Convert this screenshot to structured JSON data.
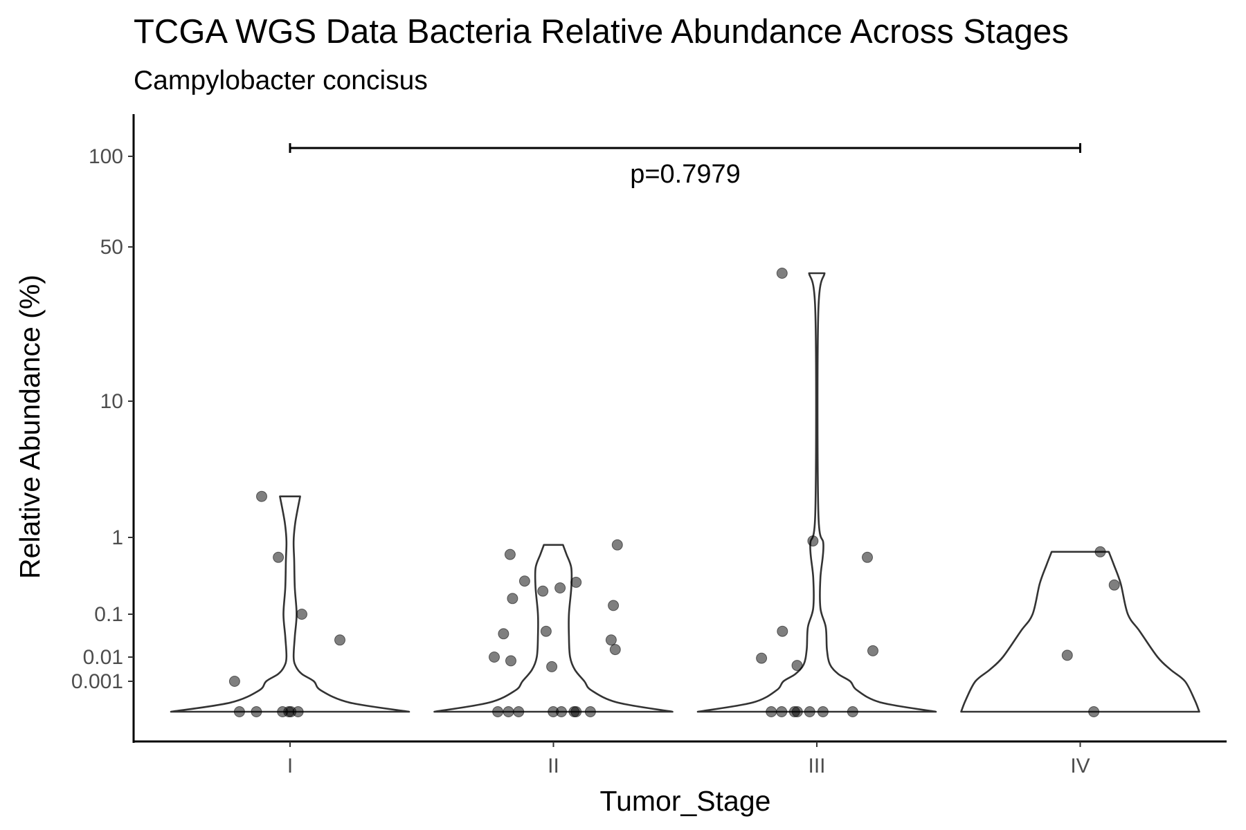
{
  "chart_data": {
    "type": "violin",
    "title": "TCGA WGS Data Bacteria Relative Abundance Across Stages",
    "subtitle": "Campylobacter concisus",
    "xlabel": "Tumor_Stage",
    "ylabel": "Relative Abundance (%)",
    "categories": [
      "I",
      "II",
      "III",
      "IV"
    ],
    "y_ticks": [
      0.001,
      0.01,
      0.1,
      1,
      10,
      50,
      100
    ],
    "y_tick_labels": [
      "0.001",
      "0.01",
      "0.1",
      "1",
      "10",
      "50",
      "100"
    ],
    "y_scale": "pseudo-log",
    "grid": false,
    "annotation": {
      "text": "p=0.7979",
      "from_category": "I",
      "to_category": "IV"
    },
    "points": [
      {
        "category": "I",
        "values": [
          0,
          0,
          0,
          0,
          0,
          0,
          0.001,
          0.025,
          0.1,
          0.55,
          2.0
        ]
      },
      {
        "category": "II",
        "values": [
          0,
          0,
          0,
          0,
          0,
          0,
          0,
          0,
          0.004,
          0.007,
          0.01,
          0.025,
          0.015,
          0.035,
          0.04,
          0.13,
          0.16,
          0.2,
          0.22,
          0.26,
          0.27,
          0.6,
          0.8
        ]
      },
      {
        "category": "III",
        "values": [
          0,
          0,
          0,
          0,
          0,
          0,
          0,
          0.0045,
          0.009,
          0.014,
          0.04,
          0.55,
          0.9,
          38
        ]
      },
      {
        "category": "IV",
        "values": [
          0,
          0.011,
          0.24,
          0.65
        ]
      }
    ],
    "violins": [
      {
        "category": "I",
        "min": 0,
        "max": 2.0,
        "density": [
          [
            0,
            1.0
          ],
          [
            0.0003,
            0.5
          ],
          [
            0.0007,
            0.26
          ],
          [
            0.001,
            0.2
          ],
          [
            0.002,
            0.1
          ],
          [
            0.004,
            0.05
          ],
          [
            0.01,
            0.03
          ],
          [
            0.03,
            0.04
          ],
          [
            0.1,
            0.055
          ],
          [
            0.22,
            0.04
          ],
          [
            0.5,
            0.035
          ],
          [
            0.9,
            0.03
          ],
          [
            1.3,
            0.045
          ],
          [
            2.0,
            0.085
          ]
        ]
      },
      {
        "category": "II",
        "min": 0,
        "max": 0.8,
        "density": [
          [
            0,
            1.0
          ],
          [
            0.0003,
            0.54
          ],
          [
            0.0007,
            0.32
          ],
          [
            0.001,
            0.26
          ],
          [
            0.003,
            0.18
          ],
          [
            0.01,
            0.14
          ],
          [
            0.03,
            0.13
          ],
          [
            0.1,
            0.13
          ],
          [
            0.22,
            0.15
          ],
          [
            0.4,
            0.15
          ],
          [
            0.6,
            0.11
          ],
          [
            0.8,
            0.08
          ]
        ]
      },
      {
        "category": "III",
        "min": 0,
        "max": 38,
        "density": [
          [
            0,
            1.0
          ],
          [
            0.0003,
            0.54
          ],
          [
            0.0007,
            0.34
          ],
          [
            0.001,
            0.28
          ],
          [
            0.002,
            0.18
          ],
          [
            0.005,
            0.11
          ],
          [
            0.015,
            0.085
          ],
          [
            0.05,
            0.075
          ],
          [
            0.12,
            0.03
          ],
          [
            0.3,
            0.03
          ],
          [
            0.8,
            0.055
          ],
          [
            1.6,
            0.012
          ],
          [
            25,
            0.012
          ],
          [
            38,
            0.065
          ]
        ]
      },
      {
        "category": "IV",
        "min": 0,
        "max": 0.65,
        "density": [
          [
            0,
            1.0
          ],
          [
            0.0004,
            0.96
          ],
          [
            0.001,
            0.88
          ],
          [
            0.003,
            0.76
          ],
          [
            0.01,
            0.65
          ],
          [
            0.04,
            0.5
          ],
          [
            0.1,
            0.4
          ],
          [
            0.25,
            0.34
          ],
          [
            0.45,
            0.28
          ],
          [
            0.65,
            0.24
          ]
        ]
      }
    ]
  }
}
